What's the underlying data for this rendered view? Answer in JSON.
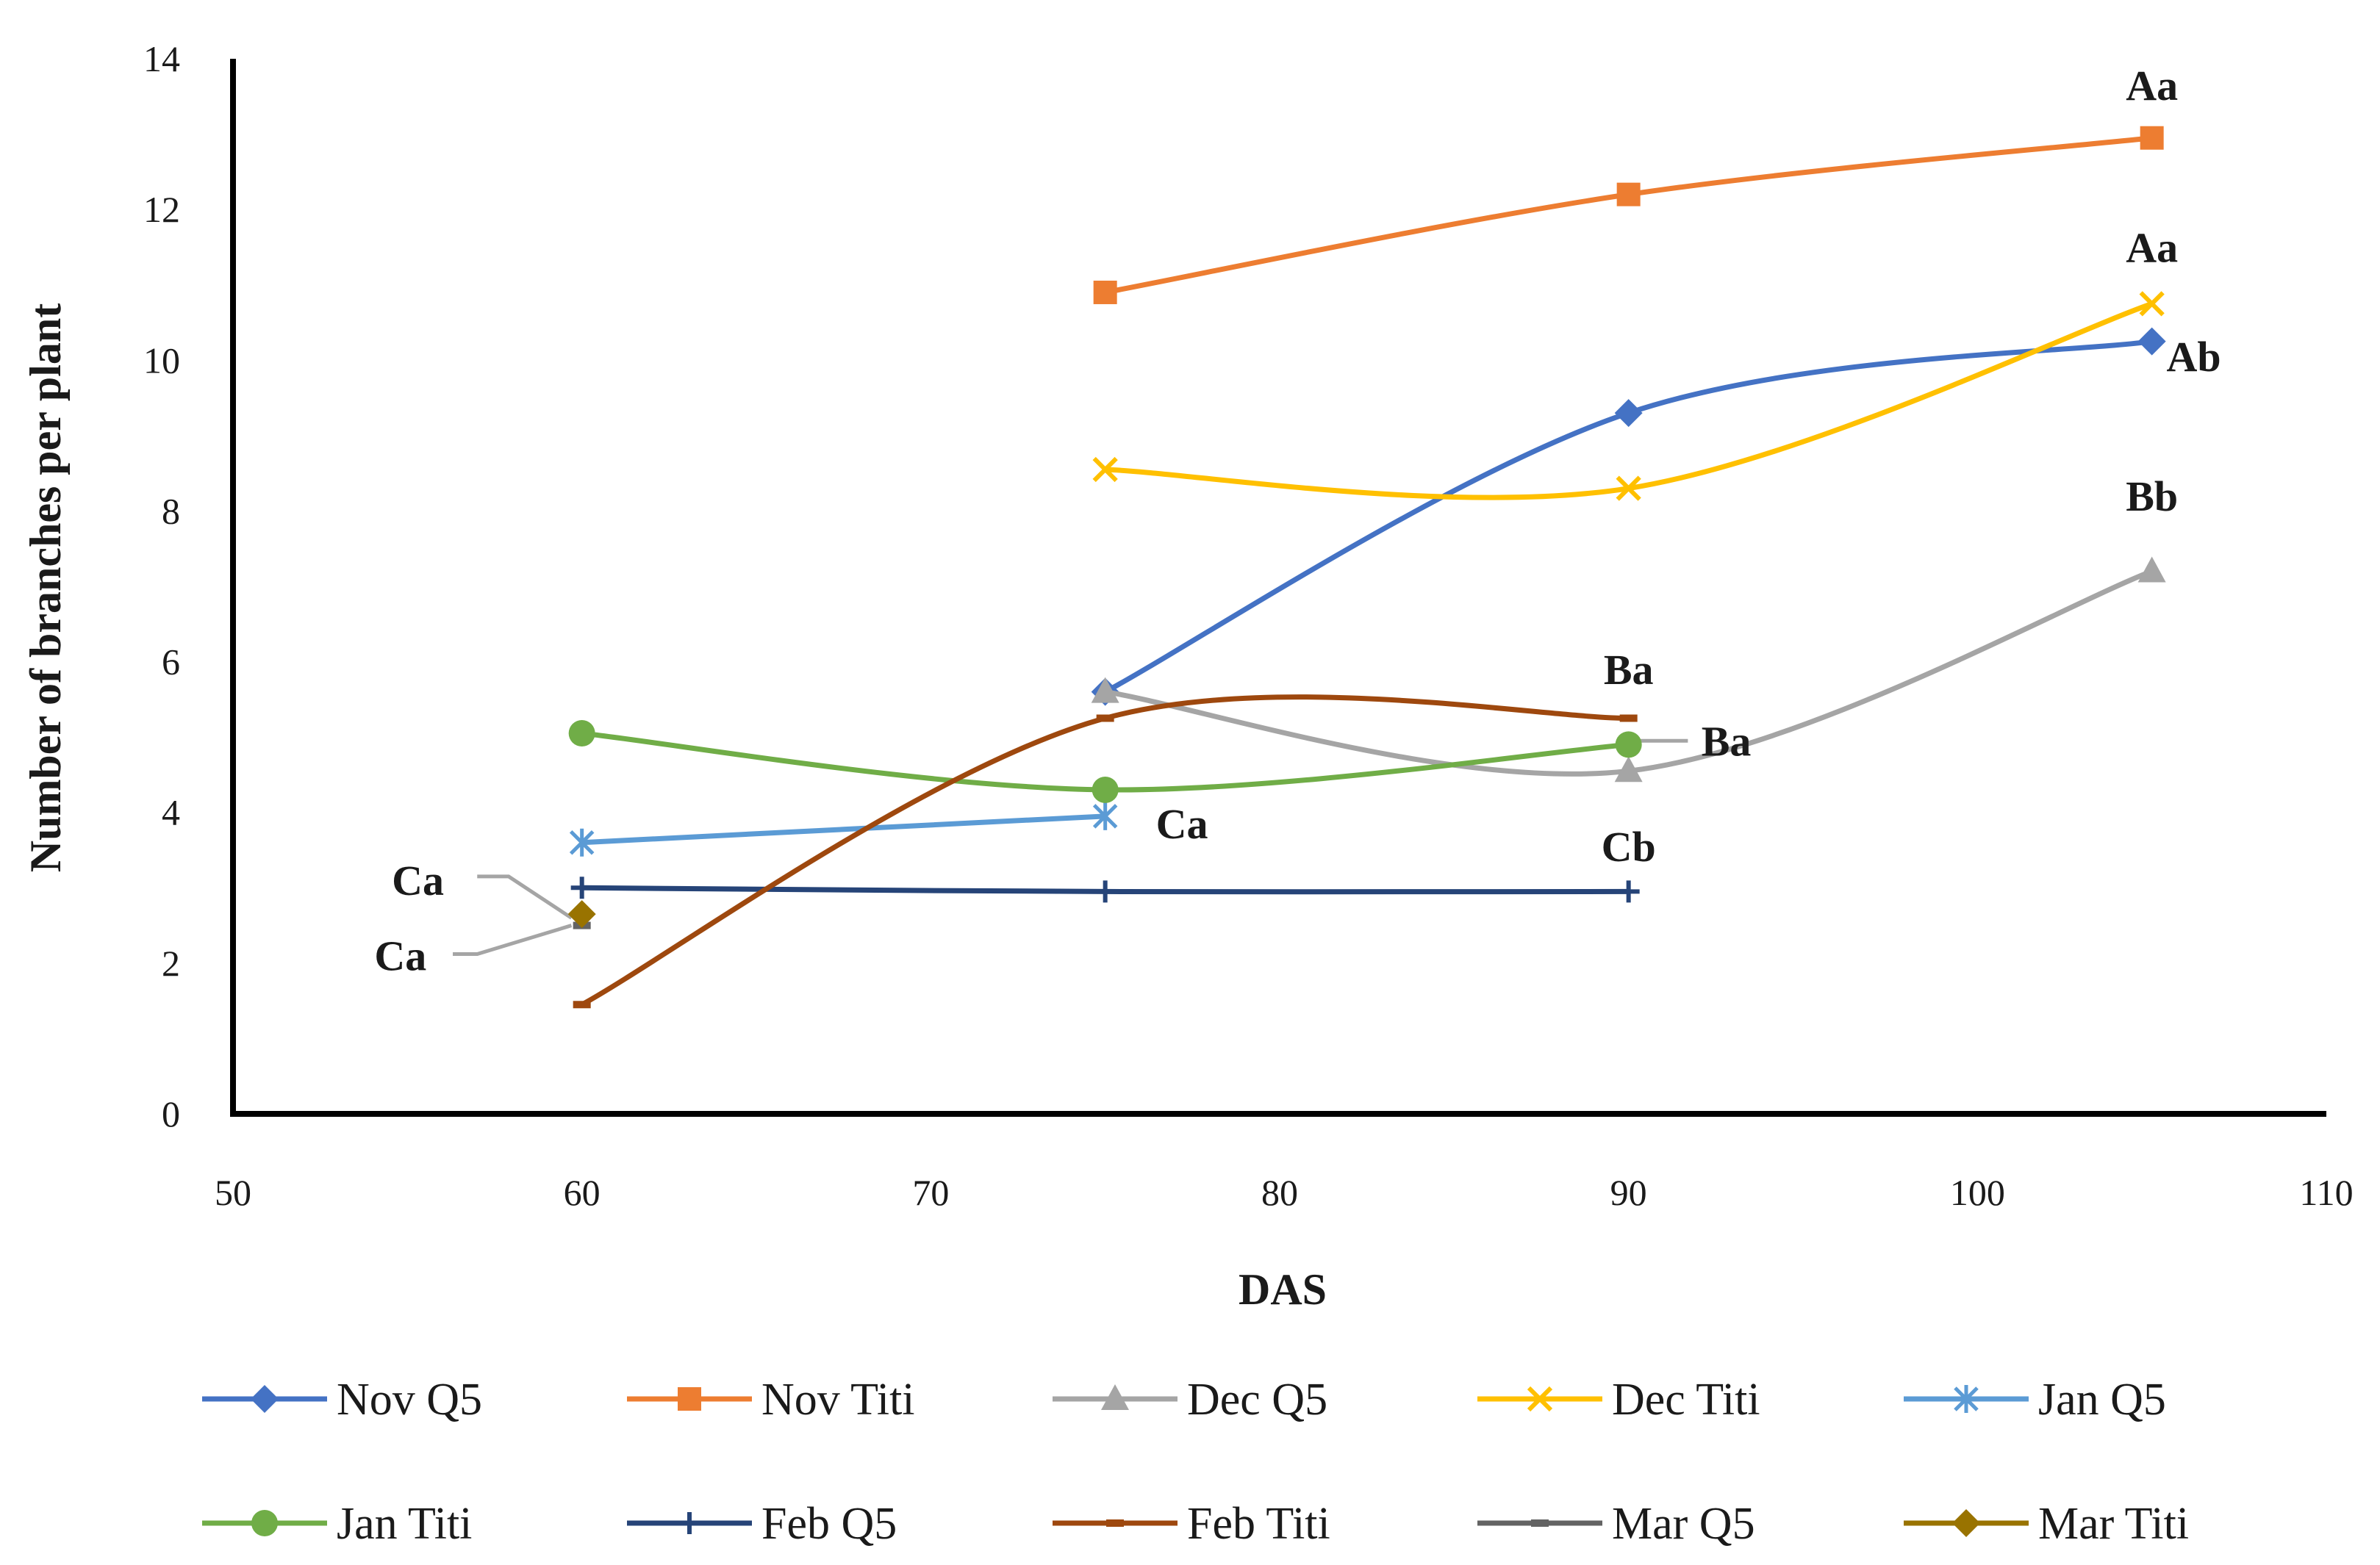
{
  "chart_data": {
    "type": "line",
    "xlabel": "DAS",
    "ylabel": "Number of branches per plant",
    "xlim": [
      50,
      110
    ],
    "ylim": [
      0,
      14
    ],
    "xticks": [
      "50",
      "60",
      "70",
      "80",
      "90",
      "100",
      "110"
    ],
    "yticks": [
      "0",
      "2",
      "4",
      "6",
      "8",
      "10",
      "12",
      "14"
    ],
    "grid": false,
    "legend_position": "bottom",
    "smooth": true,
    "series": [
      {
        "name": "Nov Q5",
        "color": "#4472C4",
        "marker": "diamond",
        "points": [
          [
            75,
            5.6
          ],
          [
            90,
            9.3
          ],
          [
            105,
            10.25
          ]
        ]
      },
      {
        "name": "Nov Titi",
        "color": "#ED7D31",
        "marker": "square",
        "points": [
          [
            75,
            10.9
          ],
          [
            90,
            12.2
          ],
          [
            105,
            12.95
          ]
        ]
      },
      {
        "name": "Dec Q5",
        "color": "#A5A5A5",
        "marker": "triangle",
        "points": [
          [
            75,
            5.6
          ],
          [
            90,
            4.55
          ],
          [
            105,
            7.2
          ]
        ]
      },
      {
        "name": "Dec Titi",
        "color": "#FFC000",
        "marker": "x",
        "points": [
          [
            75,
            8.55
          ],
          [
            90,
            8.3
          ],
          [
            105,
            10.75
          ]
        ]
      },
      {
        "name": "Jan Q5",
        "color": "#5B9BD5",
        "marker": "star",
        "points": [
          [
            60,
            3.6
          ],
          [
            75,
            3.95
          ]
        ]
      },
      {
        "name": "Jan Titi",
        "color": "#70AD47",
        "marker": "circle",
        "points": [
          [
            60,
            5.05
          ],
          [
            75,
            4.3
          ],
          [
            90,
            4.9
          ]
        ]
      },
      {
        "name": "Feb Q5",
        "color": "#264478",
        "marker": "plus",
        "points": [
          [
            60,
            3.0
          ],
          [
            75,
            2.95
          ],
          [
            90,
            2.95
          ]
        ]
      },
      {
        "name": "Feb Titi",
        "color": "#9E480E",
        "marker": "dash",
        "points": [
          [
            60,
            1.45
          ],
          [
            75,
            5.25
          ],
          [
            90,
            5.25
          ]
        ]
      },
      {
        "name": "Mar Q5",
        "color": "#636363",
        "marker": "dash",
        "points": [
          [
            60,
            2.5
          ]
        ]
      },
      {
        "name": "Mar Titi",
        "color": "#997300",
        "marker": "diamond",
        "points": [
          [
            60,
            2.65
          ]
        ]
      }
    ],
    "annotations": [
      {
        "text": "Aa",
        "x": 105,
        "y": 13.65
      },
      {
        "text": "Aa",
        "x": 105,
        "y": 11.5
      },
      {
        "text": "Ab",
        "x": 106.2,
        "y": 10.05
      },
      {
        "text": "Bb",
        "x": 105,
        "y": 8.2
      },
      {
        "text": "Ba",
        "x": 90,
        "y": 5.9
      },
      {
        "text": "Ba",
        "x": 92.8,
        "y": 4.95
      },
      {
        "text": "Ca",
        "x": 77.2,
        "y": 3.85
      },
      {
        "text": "Cb",
        "x": 90,
        "y": 3.55
      },
      {
        "text": "Ca",
        "x": 55.3,
        "y": 3.1
      },
      {
        "text": "Ca",
        "x": 54.8,
        "y": 2.1
      }
    ],
    "leaders": [
      {
        "color": "#A5A5A5",
        "points": [
          [
            57.0,
            3.15
          ],
          [
            57.9,
            3.15
          ],
          [
            59.7,
            2.6
          ]
        ]
      },
      {
        "color": "#A5A5A5",
        "points": [
          [
            56.3,
            2.12
          ],
          [
            57.0,
            2.12
          ],
          [
            59.7,
            2.5
          ]
        ]
      },
      {
        "color": "#A5A5A5",
        "points": [
          [
            90.1,
            4.95
          ],
          [
            91.7,
            4.95
          ]
        ]
      }
    ]
  }
}
